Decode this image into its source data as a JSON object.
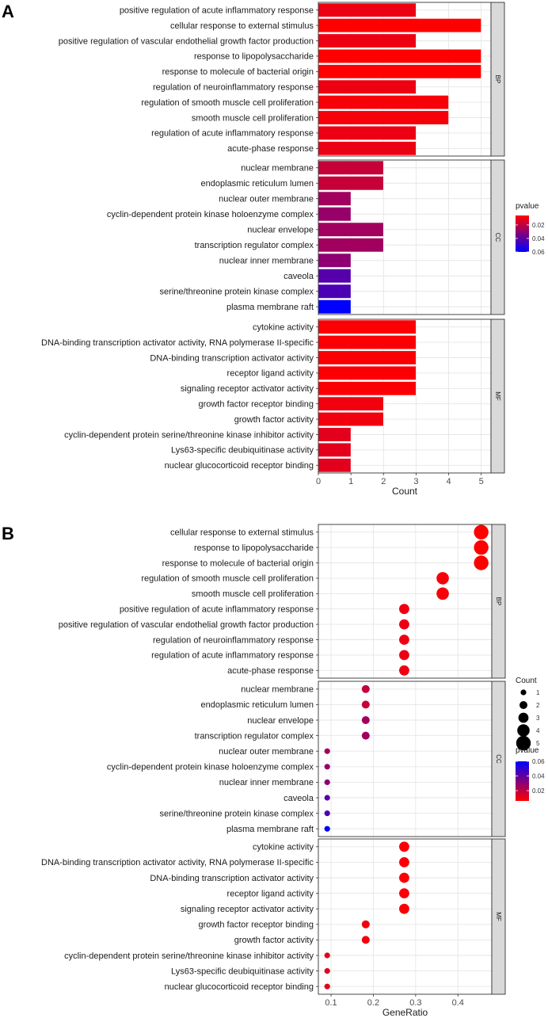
{
  "figure": {
    "panel_labels": [
      "A",
      "B"
    ]
  },
  "colors": {
    "panel_bg": "#ffffff",
    "grid": "#e6e6e6",
    "strip_bg": "#d9d9d9",
    "frame": "#333333",
    "bar_outline": "#ffffff",
    "gradient_low": "#ff0000",
    "gradient_high": "#0000ff"
  },
  "chart_data": [
    {
      "panel": "A",
      "type": "bar",
      "orientation": "horizontal",
      "xlabel": "Count",
      "ylabel": "",
      "xlim": [
        0,
        5.3
      ],
      "x_ticks": [
        0,
        1,
        2,
        3,
        4,
        5
      ],
      "grid": true,
      "legend": {
        "title": "pvalue",
        "placement": "right",
        "ticks": [
          0.02,
          0.04,
          0.06
        ],
        "range": [
          0.006,
          0.06
        ],
        "reversed": true
      },
      "facets": [
        {
          "name": "BP",
          "rows": [
            {
              "label": "positive regulation of acute inflammatory response",
              "count": 3,
              "pvalue": 0.0098
            },
            {
              "label": "cellular response to external stimulus",
              "count": 5,
              "pvalue": 0.006
            },
            {
              "label": "positive regulation of vascular endothelial growth factor production",
              "count": 3,
              "pvalue": 0.0098
            },
            {
              "label": "response to lipopolysaccharide",
              "count": 5,
              "pvalue": 0.006
            },
            {
              "label": "response to molecule of bacterial origin",
              "count": 5,
              "pvalue": 0.006
            },
            {
              "label": "regulation of neuroinflammatory response",
              "count": 3,
              "pvalue": 0.0098
            },
            {
              "label": "regulation of smooth muscle cell proliferation",
              "count": 4,
              "pvalue": 0.008
            },
            {
              "label": "smooth muscle cell proliferation",
              "count": 4,
              "pvalue": 0.008
            },
            {
              "label": "regulation of acute inflammatory response",
              "count": 3,
              "pvalue": 0.01
            },
            {
              "label": "acute-phase response",
              "count": 3,
              "pvalue": 0.01
            }
          ]
        },
        {
          "name": "CC",
          "rows": [
            {
              "label": "nuclear membrane",
              "count": 2,
              "pvalue": 0.018
            },
            {
              "label": "endoplasmic reticulum lumen",
              "count": 2,
              "pvalue": 0.018
            },
            {
              "label": "nuclear outer membrane",
              "count": 1,
              "pvalue": 0.026
            },
            {
              "label": "cyclin-dependent protein kinase holoenzyme complex",
              "count": 1,
              "pvalue": 0.028
            },
            {
              "label": "nuclear envelope",
              "count": 2,
              "pvalue": 0.026
            },
            {
              "label": "transcription regulator complex",
              "count": 2,
              "pvalue": 0.026
            },
            {
              "label": "nuclear inner membrane",
              "count": 1,
              "pvalue": 0.03
            },
            {
              "label": "caveola",
              "count": 1,
              "pvalue": 0.042
            },
            {
              "label": "serine/threonine protein kinase complex",
              "count": 1,
              "pvalue": 0.044
            },
            {
              "label": "plasma membrane raft",
              "count": 1,
              "pvalue": 0.06
            }
          ]
        },
        {
          "name": "MF",
          "rows": [
            {
              "label": "cytokine activity",
              "count": 3,
              "pvalue": 0.007
            },
            {
              "label": "DNA-binding transcription activator activity, RNA polymerase II-specific",
              "count": 3,
              "pvalue": 0.007
            },
            {
              "label": "DNA-binding transcription activator activity",
              "count": 3,
              "pvalue": 0.007
            },
            {
              "label": "receptor ligand activity",
              "count": 3,
              "pvalue": 0.007
            },
            {
              "label": "signaling receptor activator activity",
              "count": 3,
              "pvalue": 0.007
            },
            {
              "label": "growth factor receptor binding",
              "count": 2,
              "pvalue": 0.009
            },
            {
              "label": "growth factor activity",
              "count": 2,
              "pvalue": 0.009
            },
            {
              "label": "cyclin-dependent protein serine/threonine kinase inhibitor activity",
              "count": 1,
              "pvalue": 0.012
            },
            {
              "label": "Lys63-specific deubiquitinase activity",
              "count": 1,
              "pvalue": 0.012
            },
            {
              "label": "nuclear glucocorticoid receptor binding",
              "count": 1,
              "pvalue": 0.012
            }
          ]
        }
      ]
    },
    {
      "panel": "B",
      "type": "scatter",
      "subtype": "dot",
      "xlabel": "GeneRatio",
      "ylabel": "",
      "xlim": [
        0.07,
        0.48
      ],
      "x_ticks": [
        0.1,
        0.2,
        0.3,
        0.4
      ],
      "grid": true,
      "legend_count": {
        "title": "Count",
        "placement": "right",
        "values": [
          1,
          2,
          3,
          4,
          5
        ]
      },
      "legend_pvalue": {
        "title": "pvalue",
        "placement": "right",
        "ticks": [
          0.02,
          0.04,
          0.06
        ],
        "range": [
          0.006,
          0.06
        ],
        "reversed": false
      },
      "facets": [
        {
          "name": "BP",
          "rows": [
            {
              "label": "cellular response to external stimulus",
              "gene_ratio": 0.455,
              "count": 5,
              "pvalue": 0.006
            },
            {
              "label": "response to lipopolysaccharide",
              "gene_ratio": 0.455,
              "count": 5,
              "pvalue": 0.006
            },
            {
              "label": "response to molecule of bacterial origin",
              "gene_ratio": 0.455,
              "count": 5,
              "pvalue": 0.006
            },
            {
              "label": "regulation of smooth muscle cell proliferation",
              "gene_ratio": 0.364,
              "count": 4,
              "pvalue": 0.008
            },
            {
              "label": "smooth muscle cell proliferation",
              "gene_ratio": 0.364,
              "count": 4,
              "pvalue": 0.008
            },
            {
              "label": "positive regulation of acute inflammatory response",
              "gene_ratio": 0.273,
              "count": 3,
              "pvalue": 0.0098
            },
            {
              "label": "positive regulation of vascular endothelial growth factor production",
              "gene_ratio": 0.273,
              "count": 3,
              "pvalue": 0.0098
            },
            {
              "label": "regulation of neuroinflammatory response",
              "gene_ratio": 0.273,
              "count": 3,
              "pvalue": 0.0098
            },
            {
              "label": "regulation of acute inflammatory response",
              "gene_ratio": 0.273,
              "count": 3,
              "pvalue": 0.01
            },
            {
              "label": "acute-phase response",
              "gene_ratio": 0.273,
              "count": 3,
              "pvalue": 0.01
            }
          ]
        },
        {
          "name": "CC",
          "rows": [
            {
              "label": "nuclear membrane",
              "gene_ratio": 0.182,
              "count": 2,
              "pvalue": 0.018
            },
            {
              "label": "endoplasmic reticulum lumen",
              "gene_ratio": 0.182,
              "count": 2,
              "pvalue": 0.018
            },
            {
              "label": "nuclear envelope",
              "gene_ratio": 0.182,
              "count": 2,
              "pvalue": 0.026
            },
            {
              "label": "transcription regulator complex",
              "gene_ratio": 0.182,
              "count": 2,
              "pvalue": 0.026
            },
            {
              "label": "nuclear outer membrane",
              "gene_ratio": 0.091,
              "count": 1,
              "pvalue": 0.026
            },
            {
              "label": "cyclin-dependent protein kinase holoenzyme complex",
              "gene_ratio": 0.091,
              "count": 1,
              "pvalue": 0.028
            },
            {
              "label": "nuclear inner membrane",
              "gene_ratio": 0.091,
              "count": 1,
              "pvalue": 0.03
            },
            {
              "label": "caveola",
              "gene_ratio": 0.091,
              "count": 1,
              "pvalue": 0.042
            },
            {
              "label": "serine/threonine protein kinase complex",
              "gene_ratio": 0.091,
              "count": 1,
              "pvalue": 0.044
            },
            {
              "label": "plasma membrane raft",
              "gene_ratio": 0.091,
              "count": 1,
              "pvalue": 0.06
            }
          ]
        },
        {
          "name": "MF",
          "rows": [
            {
              "label": "cytokine activity",
              "gene_ratio": 0.273,
              "count": 3,
              "pvalue": 0.007
            },
            {
              "label": "DNA-binding transcription activator activity, RNA polymerase II-specific",
              "gene_ratio": 0.273,
              "count": 3,
              "pvalue": 0.007
            },
            {
              "label": "DNA-binding transcription activator activity",
              "gene_ratio": 0.273,
              "count": 3,
              "pvalue": 0.007
            },
            {
              "label": "receptor ligand activity",
              "gene_ratio": 0.273,
              "count": 3,
              "pvalue": 0.007
            },
            {
              "label": "signaling receptor activator activity",
              "gene_ratio": 0.273,
              "count": 3,
              "pvalue": 0.007
            },
            {
              "label": "growth factor receptor binding",
              "gene_ratio": 0.182,
              "count": 2,
              "pvalue": 0.009
            },
            {
              "label": "growth factor activity",
              "gene_ratio": 0.182,
              "count": 2,
              "pvalue": 0.009
            },
            {
              "label": "cyclin-dependent protein serine/threonine kinase inhibitor activity",
              "gene_ratio": 0.091,
              "count": 1,
              "pvalue": 0.012
            },
            {
              "label": "Lys63-specific deubiquitinase activity",
              "gene_ratio": 0.091,
              "count": 1,
              "pvalue": 0.012
            },
            {
              "label": "nuclear glucocorticoid receptor binding",
              "gene_ratio": 0.091,
              "count": 1,
              "pvalue": 0.012
            }
          ]
        }
      ]
    }
  ]
}
